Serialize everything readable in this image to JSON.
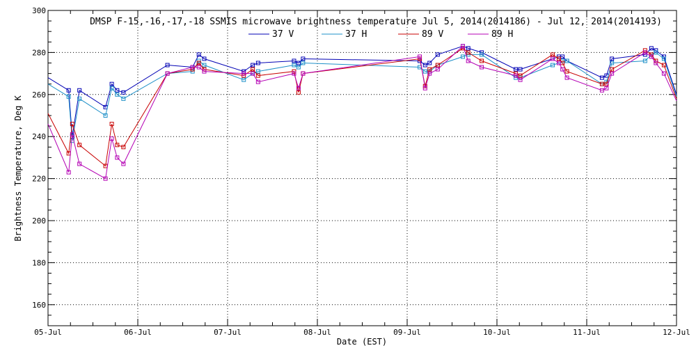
{
  "chart_data": {
    "type": "line",
    "title": "DMSP F-15,-16,-17,-18 SSMIS microwave brightness temperature Jul  5, 2014(2014186) - Jul 12, 2014(2014193)",
    "xlabel": "Date (EST)",
    "ylabel": "Brightness Temperature, Deg K",
    "xlim": [
      "05-Jul",
      "12-Jul"
    ],
    "ylim": [
      150,
      300
    ],
    "x_tick_labels": [
      "05-Jul",
      "06-Jul",
      "07-Jul",
      "08-Jul",
      "09-Jul",
      "10-Jul",
      "11-Jul",
      "12-Jul"
    ],
    "y_ticks": [
      160,
      180,
      200,
      220,
      240,
      260,
      280,
      300
    ],
    "grid": true,
    "legend_position": "top-center",
    "x_unit_note": "x values are dates in July 2014 expressed as decimal day-of-month",
    "series": [
      {
        "name": "37 V",
        "color": "#0000b4",
        "x": [
          5.0,
          5.23,
          5.27,
          5.35,
          5.64,
          5.71,
          5.77,
          5.84,
          6.33,
          6.61,
          6.68,
          6.74,
          7.18,
          7.28,
          7.34,
          7.74,
          7.79,
          7.84,
          9.14,
          9.2,
          9.25,
          9.34,
          9.62,
          9.68,
          9.83,
          10.21,
          10.26,
          10.62,
          10.69,
          10.73,
          10.78,
          11.17,
          11.22,
          11.28,
          11.65,
          11.72,
          11.77,
          11.86,
          12.0
        ],
        "y": [
          268,
          262,
          240,
          262,
          254,
          265,
          262,
          261,
          274,
          273,
          279,
          277,
          271,
          274,
          275,
          276,
          275,
          277,
          276,
          274,
          275,
          279,
          283,
          282,
          280,
          272,
          272,
          277,
          278,
          278,
          276,
          268,
          269,
          277,
          279,
          282,
          281,
          278,
          260
        ]
      },
      {
        "name": "37 H",
        "color": "#1e90c8",
        "x": [
          5.0,
          5.23,
          5.27,
          5.35,
          5.64,
          5.71,
          5.77,
          5.84,
          6.33,
          6.61,
          6.68,
          6.74,
          7.18,
          7.28,
          7.34,
          7.74,
          7.79,
          7.84,
          9.14,
          9.2,
          9.25,
          9.34,
          9.62,
          9.68,
          9.83,
          10.21,
          10.26,
          10.62,
          10.69,
          10.73,
          10.78,
          11.17,
          11.22,
          11.28,
          11.65,
          11.72,
          11.77,
          11.86,
          12.0
        ],
        "y": [
          265,
          259,
          238,
          258,
          250,
          263,
          260,
          258,
          270,
          271,
          276,
          274,
          267,
          270,
          271,
          274,
          273,
          275,
          273,
          271,
          271,
          274,
          278,
          279,
          279,
          268,
          268,
          274,
          275,
          276,
          276,
          265,
          266,
          275,
          276,
          279,
          280,
          277,
          259
        ]
      },
      {
        "name": "89 V",
        "color": "#c80000",
        "x": [
          5.0,
          5.23,
          5.27,
          5.35,
          5.64,
          5.71,
          5.77,
          5.84,
          6.33,
          6.61,
          6.68,
          6.74,
          7.18,
          7.28,
          7.34,
          7.74,
          7.79,
          7.84,
          9.14,
          9.2,
          9.25,
          9.34,
          9.62,
          9.68,
          9.83,
          10.21,
          10.26,
          10.62,
          10.69,
          10.73,
          10.78,
          11.17,
          11.22,
          11.28,
          11.65,
          11.72,
          11.77,
          11.86,
          12.0
        ],
        "y": [
          251,
          232,
          246,
          236,
          226,
          246,
          236,
          235,
          270,
          272,
          275,
          272,
          269,
          272,
          269,
          271,
          261,
          270,
          277,
          264,
          272,
          274,
          282,
          280,
          276,
          270,
          269,
          279,
          277,
          275,
          271,
          265,
          265,
          272,
          281,
          279,
          276,
          274,
          258
        ]
      },
      {
        "name": "89 H",
        "color": "#b400b4",
        "x": [
          5.0,
          5.23,
          5.27,
          5.35,
          5.64,
          5.71,
          5.77,
          5.84,
          6.33,
          6.61,
          6.68,
          6.74,
          7.18,
          7.28,
          7.34,
          7.74,
          7.79,
          7.84,
          9.14,
          9.2,
          9.25,
          9.34,
          9.62,
          9.68,
          9.83,
          10.21,
          10.26,
          10.62,
          10.69,
          10.73,
          10.78,
          11.17,
          11.22,
          11.28,
          11.65,
          11.72,
          11.77,
          11.86,
          12.0
        ],
        "y": [
          246,
          223,
          241,
          227,
          220,
          239,
          230,
          227,
          270,
          273,
          273,
          271,
          270,
          270,
          266,
          270,
          263,
          270,
          278,
          263,
          270,
          272,
          283,
          276,
          273,
          269,
          267,
          277,
          275,
          272,
          268,
          262,
          263,
          270,
          280,
          278,
          275,
          270,
          257
        ]
      }
    ]
  }
}
